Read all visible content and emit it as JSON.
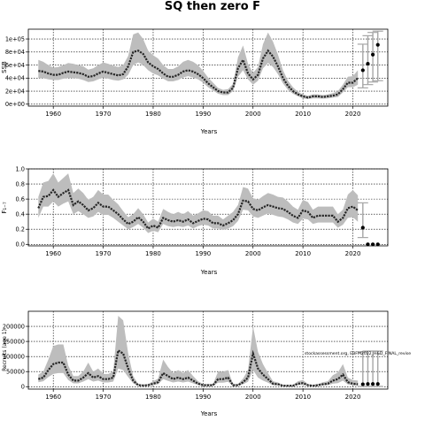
{
  "title": "SQ then zero F",
  "watermark": "stockassessment.org, EBFM2022_H&D_FINAL_revise",
  "colors": {
    "band": "#bdbdbd",
    "line": "#262626",
    "proj_band": "#a6a6a6",
    "point": "#000000",
    "grid": "#000000"
  },
  "chart_data": [
    {
      "type": "line",
      "name": "ssb",
      "ylabel": "SSB",
      "xlabel": "Years",
      "xlim": [
        1955,
        2027
      ],
      "ylim": [
        -3000,
        115000
      ],
      "xticks": [
        1960,
        1970,
        1980,
        1990,
        2000,
        2010,
        2020
      ],
      "yticks": [
        0,
        20000,
        40000,
        60000,
        80000,
        100000
      ],
      "ytick_labels": [
        "0e+00",
        "2e+04",
        "4e+04",
        "6e+04",
        "8e+04",
        "1e+05"
      ],
      "x": [
        1957,
        1958,
        1959,
        1960,
        1961,
        1962,
        1963,
        1964,
        1965,
        1966,
        1967,
        1968,
        1969,
        1970,
        1971,
        1972,
        1973,
        1974,
        1975,
        1976,
        1977,
        1978,
        1979,
        1980,
        1981,
        1982,
        1983,
        1984,
        1985,
        1986,
        1987,
        1988,
        1989,
        1990,
        1991,
        1992,
        1993,
        1994,
        1995,
        1996,
        1997,
        1998,
        1999,
        2000,
        2001,
        2002,
        2003,
        2004,
        2005,
        2006,
        2007,
        2008,
        2009,
        2010,
        2011,
        2012,
        2013,
        2014,
        2015,
        2016,
        2017,
        2018,
        2019,
        2020,
        2021
      ],
      "estimate": [
        51000,
        50000,
        47000,
        45000,
        45000,
        48000,
        50000,
        49000,
        48000,
        46000,
        42000,
        43000,
        47000,
        50000,
        48000,
        46000,
        44000,
        46000,
        58000,
        80000,
        82000,
        77000,
        64000,
        58000,
        54000,
        47000,
        42000,
        42000,
        45000,
        50000,
        52000,
        50000,
        46000,
        40000,
        32000,
        26000,
        20000,
        18000,
        18000,
        25000,
        55000,
        68000,
        47000,
        38000,
        45000,
        70000,
        82000,
        73000,
        58000,
        40000,
        28000,
        20000,
        15000,
        12000,
        10000,
        12000,
        12000,
        11000,
        12000,
        13000,
        15000,
        23000,
        33000,
        33000,
        40000
      ],
      "lower": [
        40000,
        40000,
        38000,
        37000,
        37000,
        39000,
        40000,
        40000,
        39000,
        37000,
        34000,
        35000,
        38000,
        41000,
        39000,
        37000,
        36000,
        38000,
        45000,
        60000,
        64000,
        60000,
        52000,
        47000,
        44000,
        39000,
        35000,
        35000,
        37000,
        41000,
        43000,
        41000,
        38000,
        33000,
        26000,
        21000,
        16000,
        14000,
        14000,
        20000,
        42000,
        52000,
        38000,
        30000,
        36000,
        55000,
        63000,
        57000,
        46000,
        32000,
        22000,
        16000,
        12000,
        9000,
        8000,
        9000,
        9000,
        8500,
        9000,
        10000,
        11000,
        18000,
        26000,
        26000,
        30000
      ],
      "upper": [
        68000,
        65000,
        60000,
        56000,
        57000,
        60000,
        63000,
        62000,
        60000,
        58000,
        53000,
        55000,
        60000,
        64000,
        62000,
        59000,
        57000,
        60000,
        74000,
        107000,
        110000,
        100000,
        82000,
        75000,
        70000,
        60000,
        54000,
        54000,
        58000,
        65000,
        68000,
        65000,
        60000,
        51000,
        41000,
        33000,
        25000,
        22000,
        23000,
        31000,
        72000,
        90000,
        62000,
        48000,
        57000,
        92000,
        110000,
        96000,
        76000,
        52000,
        36000,
        26000,
        19000,
        15000,
        13000,
        15000,
        15000,
        14000,
        15000,
        17000,
        20000,
        30000,
        42000,
        43000,
        52000
      ],
      "proj_x": [
        2022,
        2023,
        2024,
        2025
      ],
      "proj_estimate": [
        52000,
        62000,
        76000,
        91000
      ],
      "proj_lower": [
        25000,
        30000,
        34000,
        36000
      ],
      "proj_upper": [
        92000,
        105000,
        110000,
        112000
      ]
    },
    {
      "type": "line",
      "name": "fbar",
      "ylabel": "F₁₋₇",
      "xlabel": "Years",
      "xlim": [
        1955,
        2027
      ],
      "ylim": [
        -0.02,
        1.0
      ],
      "xticks": [
        1960,
        1970,
        1980,
        1990,
        2000,
        2010,
        2020
      ],
      "yticks": [
        0.0,
        0.2,
        0.4,
        0.6,
        0.8,
        1.0
      ],
      "ytick_labels": [
        "0.0",
        "0.2",
        "0.4",
        "0.6",
        "0.8",
        "1.0"
      ],
      "x": [
        1957,
        1958,
        1959,
        1960,
        1961,
        1962,
        1963,
        1964,
        1965,
        1966,
        1967,
        1968,
        1969,
        1970,
        1971,
        1972,
        1973,
        1974,
        1975,
        1976,
        1977,
        1978,
        1979,
        1980,
        1981,
        1982,
        1983,
        1984,
        1985,
        1986,
        1987,
        1988,
        1989,
        1990,
        1991,
        1992,
        1993,
        1994,
        1995,
        1996,
        1997,
        1998,
        1999,
        2000,
        2001,
        2002,
        2003,
        2004,
        2005,
        2006,
        2007,
        2008,
        2009,
        2010,
        2011,
        2012,
        2013,
        2014,
        2015,
        2016,
        2017,
        2018,
        2019,
        2020,
        2021
      ],
      "estimate": [
        0.48,
        0.63,
        0.64,
        0.72,
        0.63,
        0.68,
        0.72,
        0.52,
        0.57,
        0.52,
        0.45,
        0.48,
        0.55,
        0.5,
        0.5,
        0.45,
        0.4,
        0.33,
        0.27,
        0.3,
        0.36,
        0.3,
        0.21,
        0.25,
        0.22,
        0.35,
        0.32,
        0.3,
        0.32,
        0.3,
        0.33,
        0.28,
        0.31,
        0.34,
        0.33,
        0.28,
        0.28,
        0.25,
        0.28,
        0.32,
        0.4,
        0.58,
        0.57,
        0.47,
        0.45,
        0.49,
        0.52,
        0.5,
        0.48,
        0.47,
        0.43,
        0.38,
        0.35,
        0.45,
        0.43,
        0.35,
        0.38,
        0.38,
        0.38,
        0.38,
        0.3,
        0.35,
        0.48,
        0.5,
        0.45
      ],
      "lower": [
        0.35,
        0.5,
        0.5,
        0.57,
        0.5,
        0.54,
        0.57,
        0.4,
        0.44,
        0.4,
        0.35,
        0.37,
        0.43,
        0.39,
        0.39,
        0.35,
        0.3,
        0.25,
        0.2,
        0.23,
        0.27,
        0.22,
        0.15,
        0.18,
        0.16,
        0.27,
        0.24,
        0.23,
        0.24,
        0.23,
        0.25,
        0.21,
        0.24,
        0.26,
        0.25,
        0.21,
        0.21,
        0.19,
        0.21,
        0.24,
        0.31,
        0.46,
        0.45,
        0.37,
        0.35,
        0.38,
        0.41,
        0.39,
        0.37,
        0.36,
        0.33,
        0.29,
        0.27,
        0.34,
        0.33,
        0.27,
        0.29,
        0.29,
        0.29,
        0.29,
        0.22,
        0.26,
        0.35,
        0.36,
        0.3
      ],
      "upper": [
        0.63,
        0.82,
        0.84,
        0.94,
        0.82,
        0.88,
        0.94,
        0.68,
        0.74,
        0.68,
        0.59,
        0.63,
        0.72,
        0.66,
        0.66,
        0.59,
        0.53,
        0.44,
        0.36,
        0.4,
        0.48,
        0.4,
        0.29,
        0.34,
        0.3,
        0.47,
        0.43,
        0.4,
        0.43,
        0.4,
        0.44,
        0.38,
        0.41,
        0.45,
        0.44,
        0.38,
        0.38,
        0.33,
        0.38,
        0.43,
        0.52,
        0.76,
        0.74,
        0.61,
        0.59,
        0.64,
        0.68,
        0.66,
        0.63,
        0.62,
        0.57,
        0.5,
        0.46,
        0.59,
        0.56,
        0.46,
        0.5,
        0.5,
        0.5,
        0.5,
        0.4,
        0.46,
        0.66,
        0.72,
        0.65
      ],
      "proj_x": [
        2022,
        2023,
        2024,
        2025
      ],
      "proj_estimate": [
        0.22,
        0.0,
        0.0,
        0.0
      ],
      "proj_lower": [
        0.09,
        0.0,
        0.0,
        0.0
      ],
      "proj_upper": [
        0.55,
        0.0,
        0.0,
        0.0
      ]
    },
    {
      "type": "line",
      "name": "recruits",
      "ylabel": "Recruits (age 1)",
      "xlabel": "Years",
      "xlim": [
        1955,
        2027
      ],
      "ylim": [
        -8000,
        250000
      ],
      "xticks": [
        1960,
        1970,
        1980,
        1990,
        2000,
        2010,
        2020
      ],
      "yticks": [
        0,
        50000,
        100000,
        150000,
        200000
      ],
      "ytick_labels": [
        "0",
        "50000",
        "100000",
        "150000",
        "200000"
      ],
      "x": [
        1957,
        1958,
        1959,
        1960,
        1961,
        1962,
        1963,
        1964,
        1965,
        1966,
        1967,
        1968,
        1969,
        1970,
        1971,
        1972,
        1973,
        1974,
        1975,
        1976,
        1977,
        1978,
        1979,
        1980,
        1981,
        1982,
        1983,
        1984,
        1985,
        1986,
        1987,
        1988,
        1989,
        1990,
        1991,
        1992,
        1993,
        1994,
        1995,
        1996,
        1997,
        1998,
        1999,
        2000,
        2001,
        2002,
        2003,
        2004,
        2005,
        2006,
        2007,
        2008,
        2009,
        2010,
        2011,
        2012,
        2013,
        2014,
        2015,
        2016,
        2017,
        2018,
        2019,
        2020,
        2021
      ],
      "estimate": [
        25000,
        30000,
        55000,
        75000,
        80000,
        80000,
        40000,
        20000,
        20000,
        30000,
        45000,
        30000,
        35000,
        25000,
        25000,
        30000,
        120000,
        110000,
        60000,
        20000,
        5000,
        4000,
        5000,
        10000,
        15000,
        45000,
        35000,
        25000,
        30000,
        25000,
        30000,
        20000,
        10000,
        5000,
        5000,
        5000,
        25000,
        25000,
        30000,
        5000,
        5000,
        15000,
        30000,
        110000,
        60000,
        40000,
        25000,
        10000,
        8000,
        3000,
        3000,
        3000,
        10000,
        12000,
        5000,
        3000,
        5000,
        8000,
        10000,
        20000,
        25000,
        40000,
        15000,
        10000,
        8000
      ],
      "lower": [
        15000,
        18000,
        32000,
        42000,
        45000,
        45000,
        22000,
        11000,
        11000,
        17000,
        25000,
        17000,
        20000,
        14000,
        14000,
        17000,
        60000,
        55000,
        32000,
        11000,
        2500,
        2000,
        2500,
        5500,
        8000,
        25000,
        19000,
        14000,
        17000,
        14000,
        17000,
        11000,
        5500,
        2500,
        2500,
        2500,
        13000,
        13000,
        16000,
        2500,
        2500,
        8000,
        16000,
        55000,
        30000,
        20000,
        13000,
        5000,
        4000,
        1500,
        1500,
        1500,
        5000,
        6000,
        2500,
        1500,
        2500,
        4000,
        5000,
        10000,
        12000,
        20000,
        7500,
        4500,
        3500
      ],
      "upper": [
        40000,
        50000,
        90000,
        135000,
        140000,
        140000,
        70000,
        35000,
        35000,
        50000,
        80000,
        50000,
        60000,
        42000,
        42000,
        50000,
        235000,
        220000,
        110000,
        35000,
        9000,
        7000,
        9000,
        18000,
        27000,
        90000,
        65000,
        45000,
        55000,
        45000,
        55000,
        35000,
        18000,
        9000,
        9000,
        9000,
        50000,
        50000,
        55000,
        9000,
        9000,
        27000,
        55000,
        200000,
        115000,
        75000,
        45000,
        18000,
        14000,
        6000,
        6000,
        6000,
        18000,
        22000,
        9000,
        6000,
        9000,
        15000,
        18000,
        38000,
        47000,
        75000,
        30000,
        22000,
        20000
      ],
      "proj_x": [
        2022,
        2023,
        2024,
        2025
      ],
      "proj_estimate": [
        8000,
        9000,
        9000,
        9000
      ],
      "proj_lower": [
        1000,
        1000,
        1000,
        1000
      ],
      "proj_upper": [
        115000,
        118000,
        118000,
        118000
      ]
    }
  ]
}
